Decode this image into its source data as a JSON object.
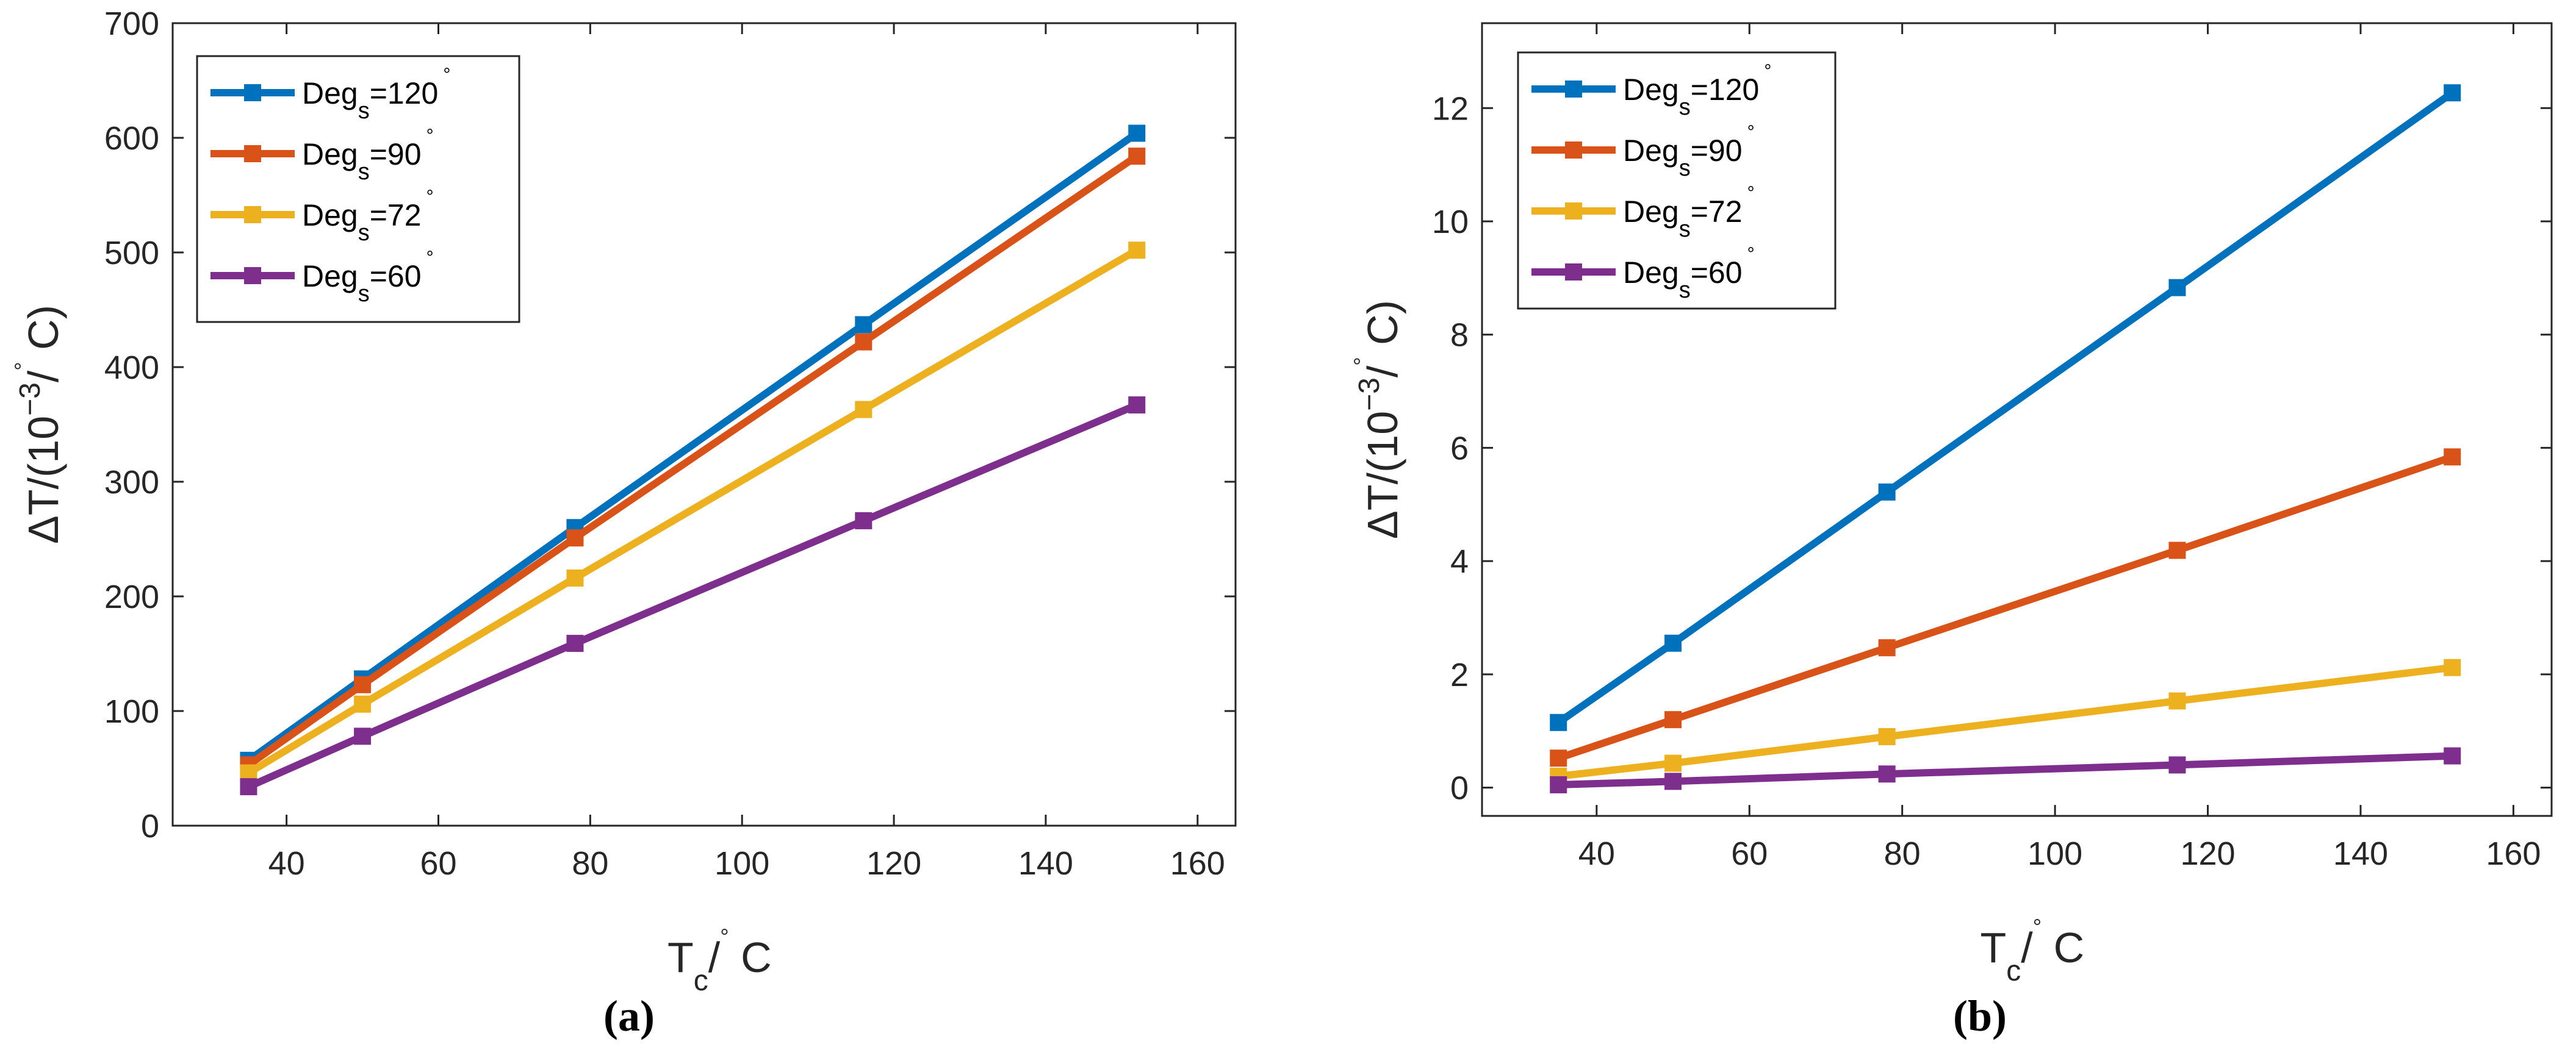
{
  "chart_data": [
    {
      "type": "line",
      "panel_label": "(a)",
      "xlabel": {
        "base": "T",
        "sub": "c",
        "mid": "/",
        "sup": "°",
        "unit": " C"
      },
      "ylabel": {
        "base": "ΔT/(10",
        "sup": "−3",
        "mid": "/",
        "sup2": "°",
        "unit": " C)"
      },
      "xlim": [
        25,
        165
      ],
      "ylim": [
        0,
        700
      ],
      "xticks": [
        40,
        60,
        80,
        100,
        120,
        140,
        160
      ],
      "yticks": [
        0,
        100,
        200,
        300,
        400,
        500,
        600,
        700
      ],
      "grid": false,
      "legend_position": "top-left",
      "x": [
        35,
        50,
        78,
        116,
        152
      ],
      "series": [
        {
          "name": {
            "base": "Deg",
            "sub": "s",
            "value": "=120",
            "sup": "°"
          },
          "color": "#0072BD",
          "values": [
            57,
            128,
            260,
            437,
            604
          ]
        },
        {
          "name": {
            "base": "Deg",
            "sub": "s",
            "value": "=90",
            "sup": "°"
          },
          "color": "#D95319",
          "values": [
            53,
            123,
            251,
            422,
            584
          ]
        },
        {
          "name": {
            "base": "Deg",
            "sub": "s",
            "value": "=72",
            "sup": "°"
          },
          "color": "#EDB120",
          "values": [
            46,
            106,
            216,
            363,
            502
          ]
        },
        {
          "name": {
            "base": "Deg",
            "sub": "s",
            "value": "=60",
            "sup": "°"
          },
          "color": "#7E2F8E",
          "values": [
            34,
            78,
            159,
            266,
            367
          ]
        }
      ]
    },
    {
      "type": "line",
      "panel_label": "(b)",
      "xlabel": {
        "base": "T",
        "sub": "c",
        "mid": "/",
        "sup": "°",
        "unit": " C"
      },
      "ylabel": {
        "base": "ΔT/(10",
        "sup": "−3",
        "mid": "/",
        "sup2": "°",
        "unit": " C)"
      },
      "xlim": [
        25,
        165
      ],
      "ylim": [
        -0.5,
        13.5
      ],
      "xticks": [
        40,
        60,
        80,
        100,
        120,
        140,
        160
      ],
      "yticks": [
        0,
        2,
        4,
        6,
        8,
        10,
        12
      ],
      "grid": false,
      "legend_position": "top-left",
      "x": [
        35,
        50,
        78,
        116,
        152
      ],
      "series": [
        {
          "name": {
            "base": "Deg",
            "sub": "s",
            "value": "=120",
            "sup": "°"
          },
          "color": "#0072BD",
          "values": [
            1.15,
            2.55,
            5.22,
            8.83,
            12.27
          ]
        },
        {
          "name": {
            "base": "Deg",
            "sub": "s",
            "value": "=90",
            "sup": "°"
          },
          "color": "#D95319",
          "values": [
            0.52,
            1.2,
            2.47,
            4.19,
            5.84
          ]
        },
        {
          "name": {
            "base": "Deg",
            "sub": "s",
            "value": "=72",
            "sup": "°"
          },
          "color": "#EDB120",
          "values": [
            0.2,
            0.43,
            0.9,
            1.53,
            2.12
          ]
        },
        {
          "name": {
            "base": "Deg",
            "sub": "s",
            "value": "=60",
            "sup": "°"
          },
          "color": "#7E2F8E",
          "values": [
            0.05,
            0.11,
            0.24,
            0.4,
            0.56
          ]
        }
      ]
    }
  ]
}
